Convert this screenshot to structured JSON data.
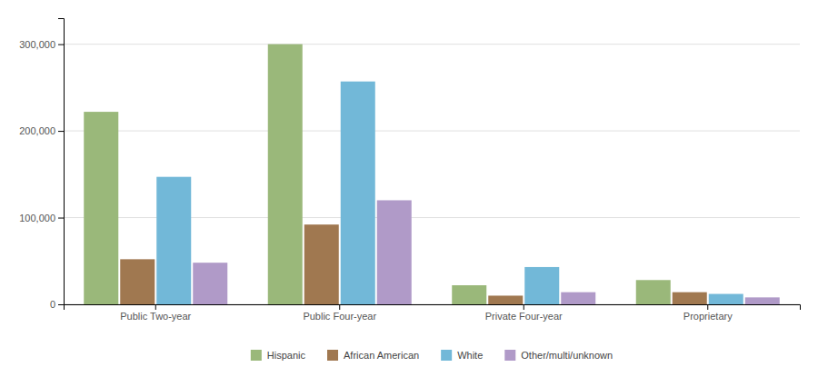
{
  "chart_data": {
    "type": "bar",
    "categories": [
      "Public Two-year",
      "Public Four-year",
      "Private Four-year",
      "Proprietary"
    ],
    "series": [
      {
        "name": "Hispanic",
        "color": "#9ab87a",
        "values": [
          222000,
          300000,
          22000,
          28000
        ]
      },
      {
        "name": "African American",
        "color": "#a07850",
        "values": [
          52000,
          92000,
          10000,
          14000
        ]
      },
      {
        "name": "White",
        "color": "#72b8d8",
        "values": [
          147000,
          257000,
          43000,
          12000
        ]
      },
      {
        "name": "Other/multi/unknown",
        "color": "#b09ac8",
        "values": [
          48000,
          120000,
          14000,
          8000
        ]
      }
    ],
    "ylim": [
      0,
      330000
    ],
    "yticks": [
      0,
      {
        "value": 100000,
        "label": "100,000"
      },
      {
        "value": 200000,
        "label": "200,000"
      },
      {
        "value": 300000,
        "label": "300,000"
      }
    ],
    "grid": true,
    "legend": "bottom"
  }
}
